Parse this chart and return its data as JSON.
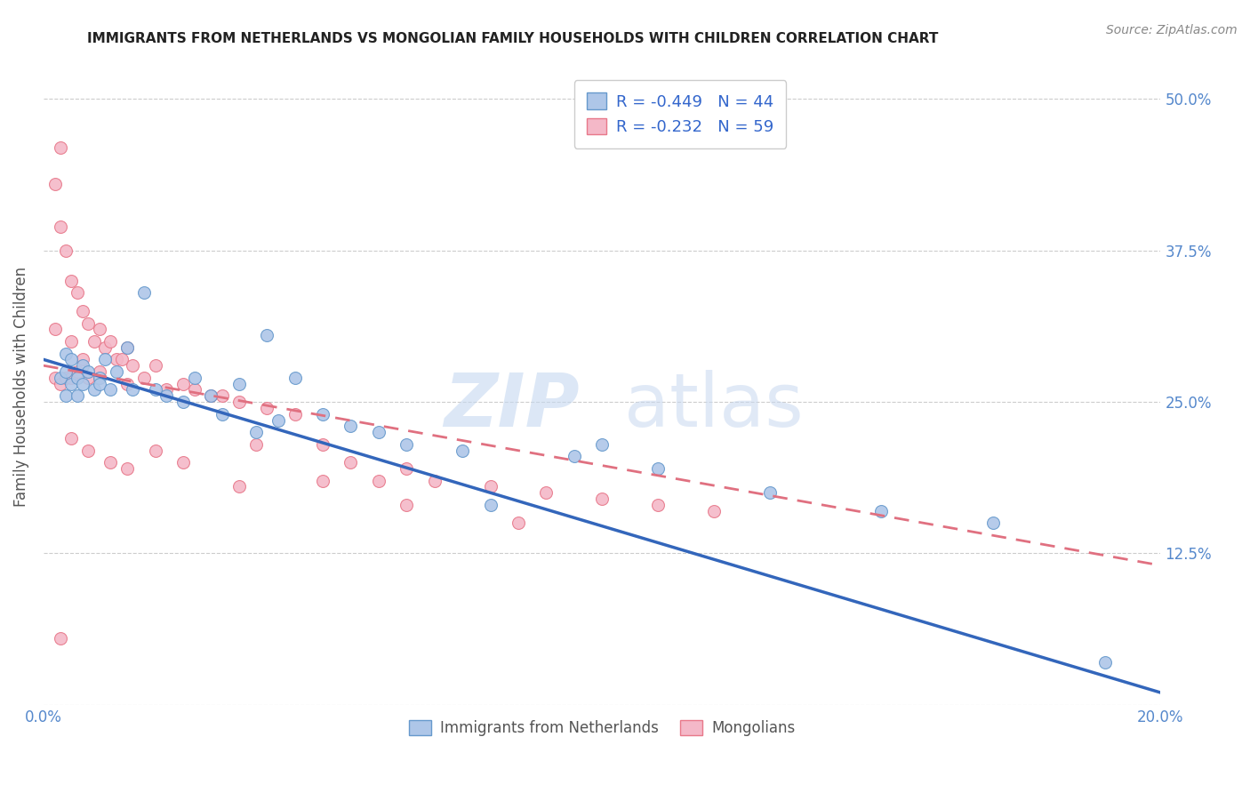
{
  "title": "IMMIGRANTS FROM NETHERLANDS VS MONGOLIAN FAMILY HOUSEHOLDS WITH CHILDREN CORRELATION CHART",
  "source": "Source: ZipAtlas.com",
  "ylabel": "Family Households with Children",
  "xlim": [
    0.0,
    0.2
  ],
  "ylim": [
    0.0,
    0.525
  ],
  "yticks": [
    0.0,
    0.125,
    0.25,
    0.375,
    0.5
  ],
  "ytick_labels_left": [
    "",
    "",
    "",
    "",
    ""
  ],
  "ytick_labels_right": [
    "",
    "12.5%",
    "25.0%",
    "37.5%",
    "50.0%"
  ],
  "xticks": [
    0.0,
    0.05,
    0.1,
    0.15,
    0.2
  ],
  "xtick_labels": [
    "0.0%",
    "",
    "",
    "",
    "20.0%"
  ],
  "legend_r1": "R = -0.449",
  "legend_n1": "N = 44",
  "legend_r2": "R = -0.232",
  "legend_n2": "N = 59",
  "blue_scatter_x": [
    0.003,
    0.004,
    0.004,
    0.004,
    0.005,
    0.005,
    0.006,
    0.006,
    0.007,
    0.007,
    0.008,
    0.009,
    0.01,
    0.01,
    0.011,
    0.012,
    0.013,
    0.015,
    0.016,
    0.018,
    0.02,
    0.022,
    0.025,
    0.027,
    0.03,
    0.032,
    0.035,
    0.038,
    0.04,
    0.042,
    0.045,
    0.05,
    0.055,
    0.06,
    0.065,
    0.075,
    0.08,
    0.095,
    0.1,
    0.11,
    0.13,
    0.15,
    0.17,
    0.19
  ],
  "blue_scatter_y": [
    0.27,
    0.255,
    0.275,
    0.29,
    0.265,
    0.285,
    0.255,
    0.27,
    0.265,
    0.28,
    0.275,
    0.26,
    0.27,
    0.265,
    0.285,
    0.26,
    0.275,
    0.295,
    0.26,
    0.34,
    0.26,
    0.255,
    0.25,
    0.27,
    0.255,
    0.24,
    0.265,
    0.225,
    0.305,
    0.235,
    0.27,
    0.24,
    0.23,
    0.225,
    0.215,
    0.21,
    0.165,
    0.205,
    0.215,
    0.195,
    0.175,
    0.16,
    0.15,
    0.035
  ],
  "pink_scatter_x": [
    0.002,
    0.002,
    0.002,
    0.003,
    0.003,
    0.003,
    0.004,
    0.004,
    0.005,
    0.005,
    0.005,
    0.006,
    0.006,
    0.007,
    0.007,
    0.008,
    0.008,
    0.009,
    0.01,
    0.01,
    0.011,
    0.012,
    0.013,
    0.014,
    0.015,
    0.015,
    0.016,
    0.018,
    0.02,
    0.022,
    0.025,
    0.027,
    0.03,
    0.032,
    0.035,
    0.038,
    0.04,
    0.045,
    0.05,
    0.055,
    0.06,
    0.065,
    0.07,
    0.08,
    0.09,
    0.1,
    0.11,
    0.12,
    0.003,
    0.005,
    0.008,
    0.012,
    0.015,
    0.02,
    0.025,
    0.035,
    0.05,
    0.065,
    0.085
  ],
  "pink_scatter_y": [
    0.43,
    0.31,
    0.27,
    0.46,
    0.395,
    0.265,
    0.375,
    0.27,
    0.35,
    0.3,
    0.27,
    0.34,
    0.275,
    0.325,
    0.285,
    0.315,
    0.27,
    0.3,
    0.31,
    0.275,
    0.295,
    0.3,
    0.285,
    0.285,
    0.295,
    0.265,
    0.28,
    0.27,
    0.28,
    0.26,
    0.265,
    0.26,
    0.255,
    0.255,
    0.25,
    0.215,
    0.245,
    0.24,
    0.215,
    0.2,
    0.185,
    0.195,
    0.185,
    0.18,
    0.175,
    0.17,
    0.165,
    0.16,
    0.055,
    0.22,
    0.21,
    0.2,
    0.195,
    0.21,
    0.2,
    0.18,
    0.185,
    0.165,
    0.15
  ],
  "blue_line_x": [
    0.0,
    0.2
  ],
  "blue_line_y": [
    0.285,
    0.01
  ],
  "pink_line_x": [
    0.0,
    0.2
  ],
  "pink_line_y": [
    0.28,
    0.115
  ],
  "scatter_size": 100,
  "blue_face_color": "#aec6e8",
  "blue_edge_color": "#6699cc",
  "pink_face_color": "#f4b8c8",
  "pink_edge_color": "#e8788a",
  "blue_line_color": "#3366bb",
  "pink_line_color": "#e07080",
  "title_color": "#222222",
  "axis_label_color": "#555555",
  "tick_color": "#5588cc",
  "grid_color": "#cccccc",
  "watermark_color": "#d0dff0",
  "source_color": "#888888",
  "legend_text_color": "#333333",
  "legend_value_color": "#3366cc"
}
